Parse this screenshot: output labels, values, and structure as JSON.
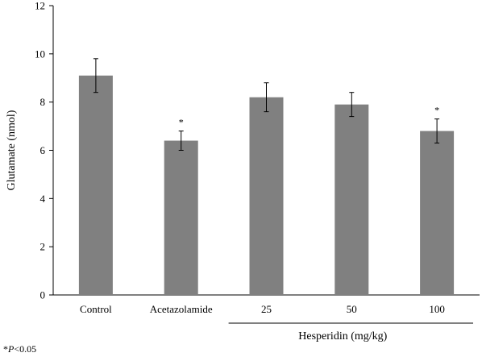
{
  "chart_data": {
    "type": "bar",
    "categories": [
      "Control",
      "Acetazolamide",
      "25",
      "50",
      "100"
    ],
    "values": [
      9.1,
      6.4,
      8.2,
      7.9,
      6.8
    ],
    "errors": [
      0.7,
      0.4,
      0.6,
      0.5,
      0.5
    ],
    "significant": [
      false,
      true,
      false,
      false,
      true
    ],
    "significance_marker": "*",
    "ylabel": "Glutamate  (nmol)",
    "ylim": [
      0,
      12
    ],
    "yticks": [
      0,
      2,
      4,
      6,
      8,
      10,
      12
    ],
    "group_label": "Hesperidin  (mg/kg)",
    "group_categories": [
      "25",
      "50",
      "100"
    ],
    "bar_color": "#808080",
    "grid": false
  },
  "footnote": {
    "marker": "*",
    "symbol": "P",
    "text": "<0.05"
  }
}
